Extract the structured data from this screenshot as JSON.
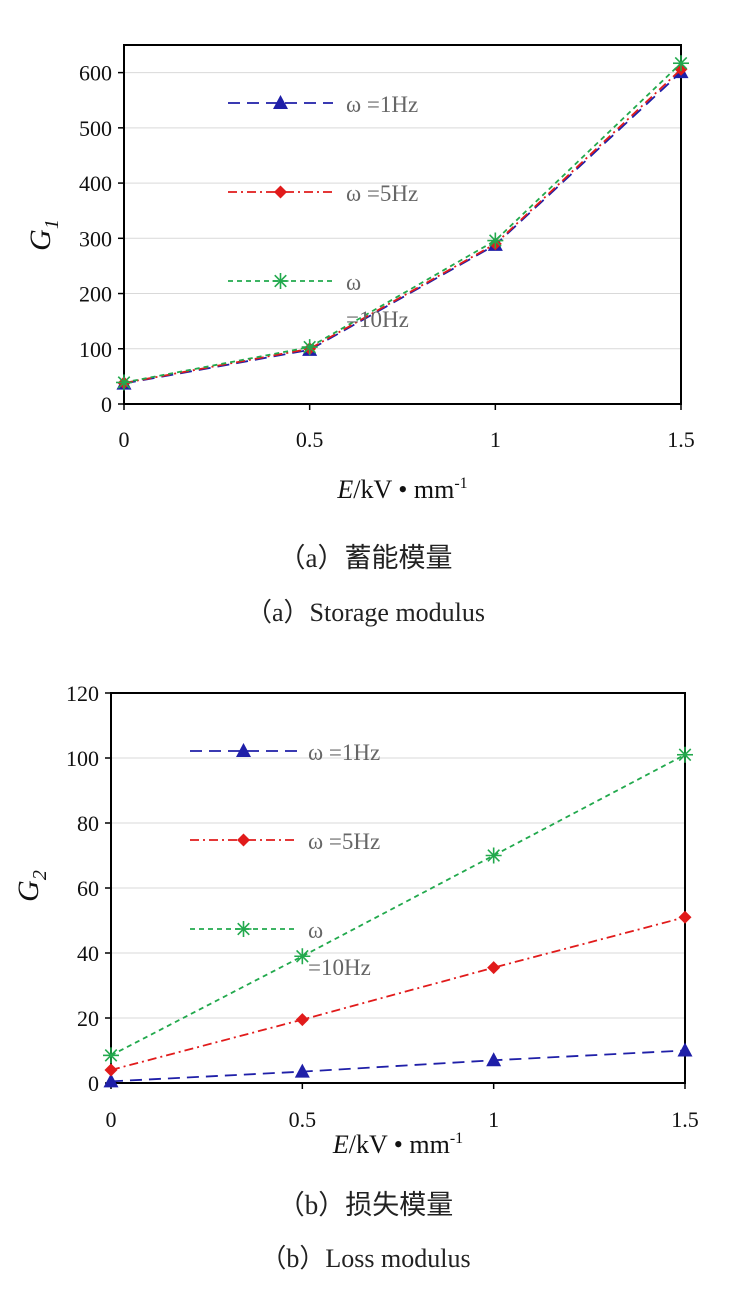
{
  "chart_data": [
    {
      "type": "line",
      "x": [
        0,
        0.5,
        1,
        1.5
      ],
      "xticks": [
        "0",
        "0.5",
        "1",
        "1.5"
      ],
      "yticks": [
        "0",
        "100",
        "200",
        "300",
        "400",
        "500",
        "600"
      ],
      "xlim": [
        0,
        1.5
      ],
      "ylim": [
        0,
        650
      ],
      "xlabel_italic": "E",
      "xlabel_rest": "/kV • mm",
      "xlabel_sup": "-1",
      "ylabel": "G",
      "ylabel_sub": "1",
      "grid": "horizontal",
      "legend_position": "top-left inside",
      "series": [
        {
          "name": "ω =1Hz",
          "name_parts": [
            "ω =1Hz"
          ],
          "values": [
            37,
            98,
            288,
            601
          ],
          "color": "#1f1fa8",
          "marker": "triangle",
          "dash": "12,7"
        },
        {
          "name": "ω =5Hz",
          "name_parts": [
            "ω =5Hz"
          ],
          "values": [
            38,
            100,
            290,
            606
          ],
          "color": "#e11b1b",
          "marker": "diamond",
          "dash": "9,4,2,4"
        },
        {
          "name": "ω =10Hz",
          "name_parts": [
            "ω",
            "=10Hz"
          ],
          "values": [
            39,
            103,
            296,
            617
          ],
          "color": "#22a94d",
          "marker": "asterisk",
          "dash": "5,4"
        }
      ],
      "caption_zh": "（a）蓄能模量",
      "caption_en": "（a）Storage modulus"
    },
    {
      "type": "line",
      "x": [
        0,
        0.5,
        1,
        1.5
      ],
      "xticks": [
        "0",
        "0.5",
        "1",
        "1.5"
      ],
      "yticks": [
        "0",
        "20",
        "40",
        "60",
        "80",
        "100",
        "120"
      ],
      "xlim": [
        0,
        1.5
      ],
      "ylim": [
        0,
        120
      ],
      "xlabel_italic": "E",
      "xlabel_rest": "/kV • mm",
      "xlabel_sup": "-1",
      "ylabel": "G",
      "ylabel_sub": "2",
      "grid": "horizontal",
      "legend_position": "top-left inside",
      "series": [
        {
          "name": "ω =1Hz",
          "name_parts": [
            "ω =1Hz"
          ],
          "values": [
            0.5,
            3.5,
            7,
            10
          ],
          "color": "#1f1fa8",
          "marker": "triangle",
          "dash": "12,7"
        },
        {
          "name": "ω =5Hz",
          "name_parts": [
            "ω =5Hz"
          ],
          "values": [
            4,
            19.5,
            35.5,
            51
          ],
          "color": "#e11b1b",
          "marker": "diamond",
          "dash": "9,4,2,4"
        },
        {
          "name": "ω =10Hz",
          "name_parts": [
            "ω",
            "=10Hz"
          ],
          "values": [
            8.5,
            39,
            70,
            101
          ],
          "color": "#22a94d",
          "marker": "asterisk",
          "dash": "5,4"
        }
      ],
      "caption_zh": "（b）损失模量",
      "caption_en": "（b）Loss modulus"
    }
  ]
}
